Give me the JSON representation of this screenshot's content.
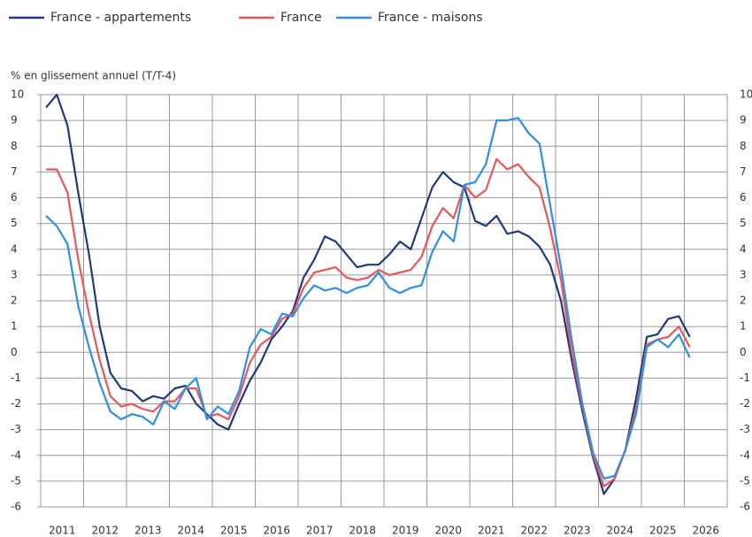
{
  "chart_data": {
    "type": "line",
    "y_axis_label": "% en glissement annuel (T/T-4)",
    "x": [
      2011.125,
      2011.375,
      2011.625,
      2011.875,
      2012.125,
      2012.375,
      2012.625,
      2012.875,
      2013.125,
      2013.375,
      2013.625,
      2013.875,
      2014.125,
      2014.375,
      2014.625,
      2014.875,
      2015.125,
      2015.375,
      2015.625,
      2015.875,
      2016.125,
      2016.375,
      2016.625,
      2016.875,
      2017.125,
      2017.375,
      2017.625,
      2017.875,
      2018.125,
      2018.375,
      2018.625,
      2018.875,
      2019.125,
      2019.375,
      2019.625,
      2019.875,
      2020.125,
      2020.375,
      2020.625,
      2020.875,
      2021.125,
      2021.375,
      2021.625,
      2021.875,
      2022.125,
      2022.375,
      2022.625,
      2022.875,
      2023.125,
      2023.375,
      2023.625,
      2023.875,
      2024.125,
      2024.375,
      2024.625,
      2024.875,
      2025.125,
      2025.375,
      2025.625,
      2025.875,
      2026.125
    ],
    "series": [
      {
        "name": "France - appartements",
        "color": "#1f3a7a",
        "values": [
          9.5,
          10.0,
          8.8,
          6.2,
          3.8,
          1.0,
          -0.8,
          -1.4,
          -1.5,
          -1.9,
          -1.7,
          -1.8,
          -1.4,
          -1.3,
          -2.0,
          -2.4,
          -2.8,
          -3.0,
          -2.0,
          -1.1,
          -0.4,
          0.5,
          1.0,
          1.6,
          2.9,
          3.6,
          4.5,
          4.3,
          3.8,
          3.3,
          3.4,
          3.4,
          3.8,
          4.3,
          4.0,
          5.2,
          6.4,
          7.0,
          6.6,
          6.4,
          5.1,
          4.9,
          5.3,
          4.6,
          4.7,
          4.5,
          4.1,
          3.4,
          2.0,
          -0.3,
          -2.3,
          -4.1,
          -5.5,
          -4.9,
          -3.8,
          -1.8,
          0.6,
          0.7,
          1.3,
          1.4,
          0.6
        ]
      },
      {
        "name": "France",
        "color": "#e8575a",
        "values": [
          7.1,
          7.1,
          6.2,
          3.6,
          1.5,
          -0.3,
          -1.7,
          -2.1,
          -2.0,
          -2.2,
          -2.3,
          -1.9,
          -1.9,
          -1.4,
          -1.4,
          -2.5,
          -2.4,
          -2.6,
          -1.7,
          -0.4,
          0.3,
          0.6,
          1.3,
          1.5,
          2.5,
          3.1,
          3.2,
          3.3,
          2.9,
          2.8,
          2.9,
          3.2,
          3.0,
          3.1,
          3.2,
          3.7,
          4.9,
          5.6,
          5.2,
          6.5,
          6.0,
          6.3,
          7.5,
          7.1,
          7.3,
          6.8,
          6.4,
          4.8,
          2.8,
          0.0,
          -2.1,
          -4.0,
          -5.2,
          -4.9,
          -3.8,
          -2.2,
          0.3,
          0.5,
          0.6,
          1.0,
          0.2
        ]
      },
      {
        "name": "France - maisons",
        "color": "#2f8fe8",
        "values": [
          5.3,
          4.9,
          4.2,
          1.8,
          0.2,
          -1.2,
          -2.3,
          -2.6,
          -2.4,
          -2.5,
          -2.8,
          -1.9,
          -2.2,
          -1.4,
          -1.0,
          -2.6,
          -2.1,
          -2.4,
          -1.5,
          0.2,
          0.9,
          0.7,
          1.5,
          1.4,
          2.1,
          2.6,
          2.4,
          2.5,
          2.3,
          2.5,
          2.6,
          3.1,
          2.5,
          2.3,
          2.5,
          2.6,
          3.9,
          4.7,
          4.3,
          6.5,
          6.6,
          7.3,
          9.0,
          9.0,
          9.1,
          8.5,
          8.1,
          5.7,
          3.3,
          0.5,
          -2.0,
          -3.9,
          -4.9,
          -4.8,
          -3.8,
          -2.4,
          0.2,
          0.5,
          0.2,
          0.7,
          -0.2
        ]
      }
    ],
    "xlim": [
      2011,
      2027
    ],
    "xticks": [
      2011,
      2012,
      2013,
      2014,
      2015,
      2016,
      2017,
      2018,
      2019,
      2020,
      2021,
      2022,
      2023,
      2024,
      2025,
      2026
    ],
    "ylim": [
      -6,
      10
    ],
    "yticks": [
      -6,
      -5,
      -4,
      -3,
      -2,
      -1,
      0,
      1,
      2,
      3,
      4,
      5,
      6,
      7,
      8,
      9,
      10
    ],
    "grid": true,
    "legend": "top"
  }
}
